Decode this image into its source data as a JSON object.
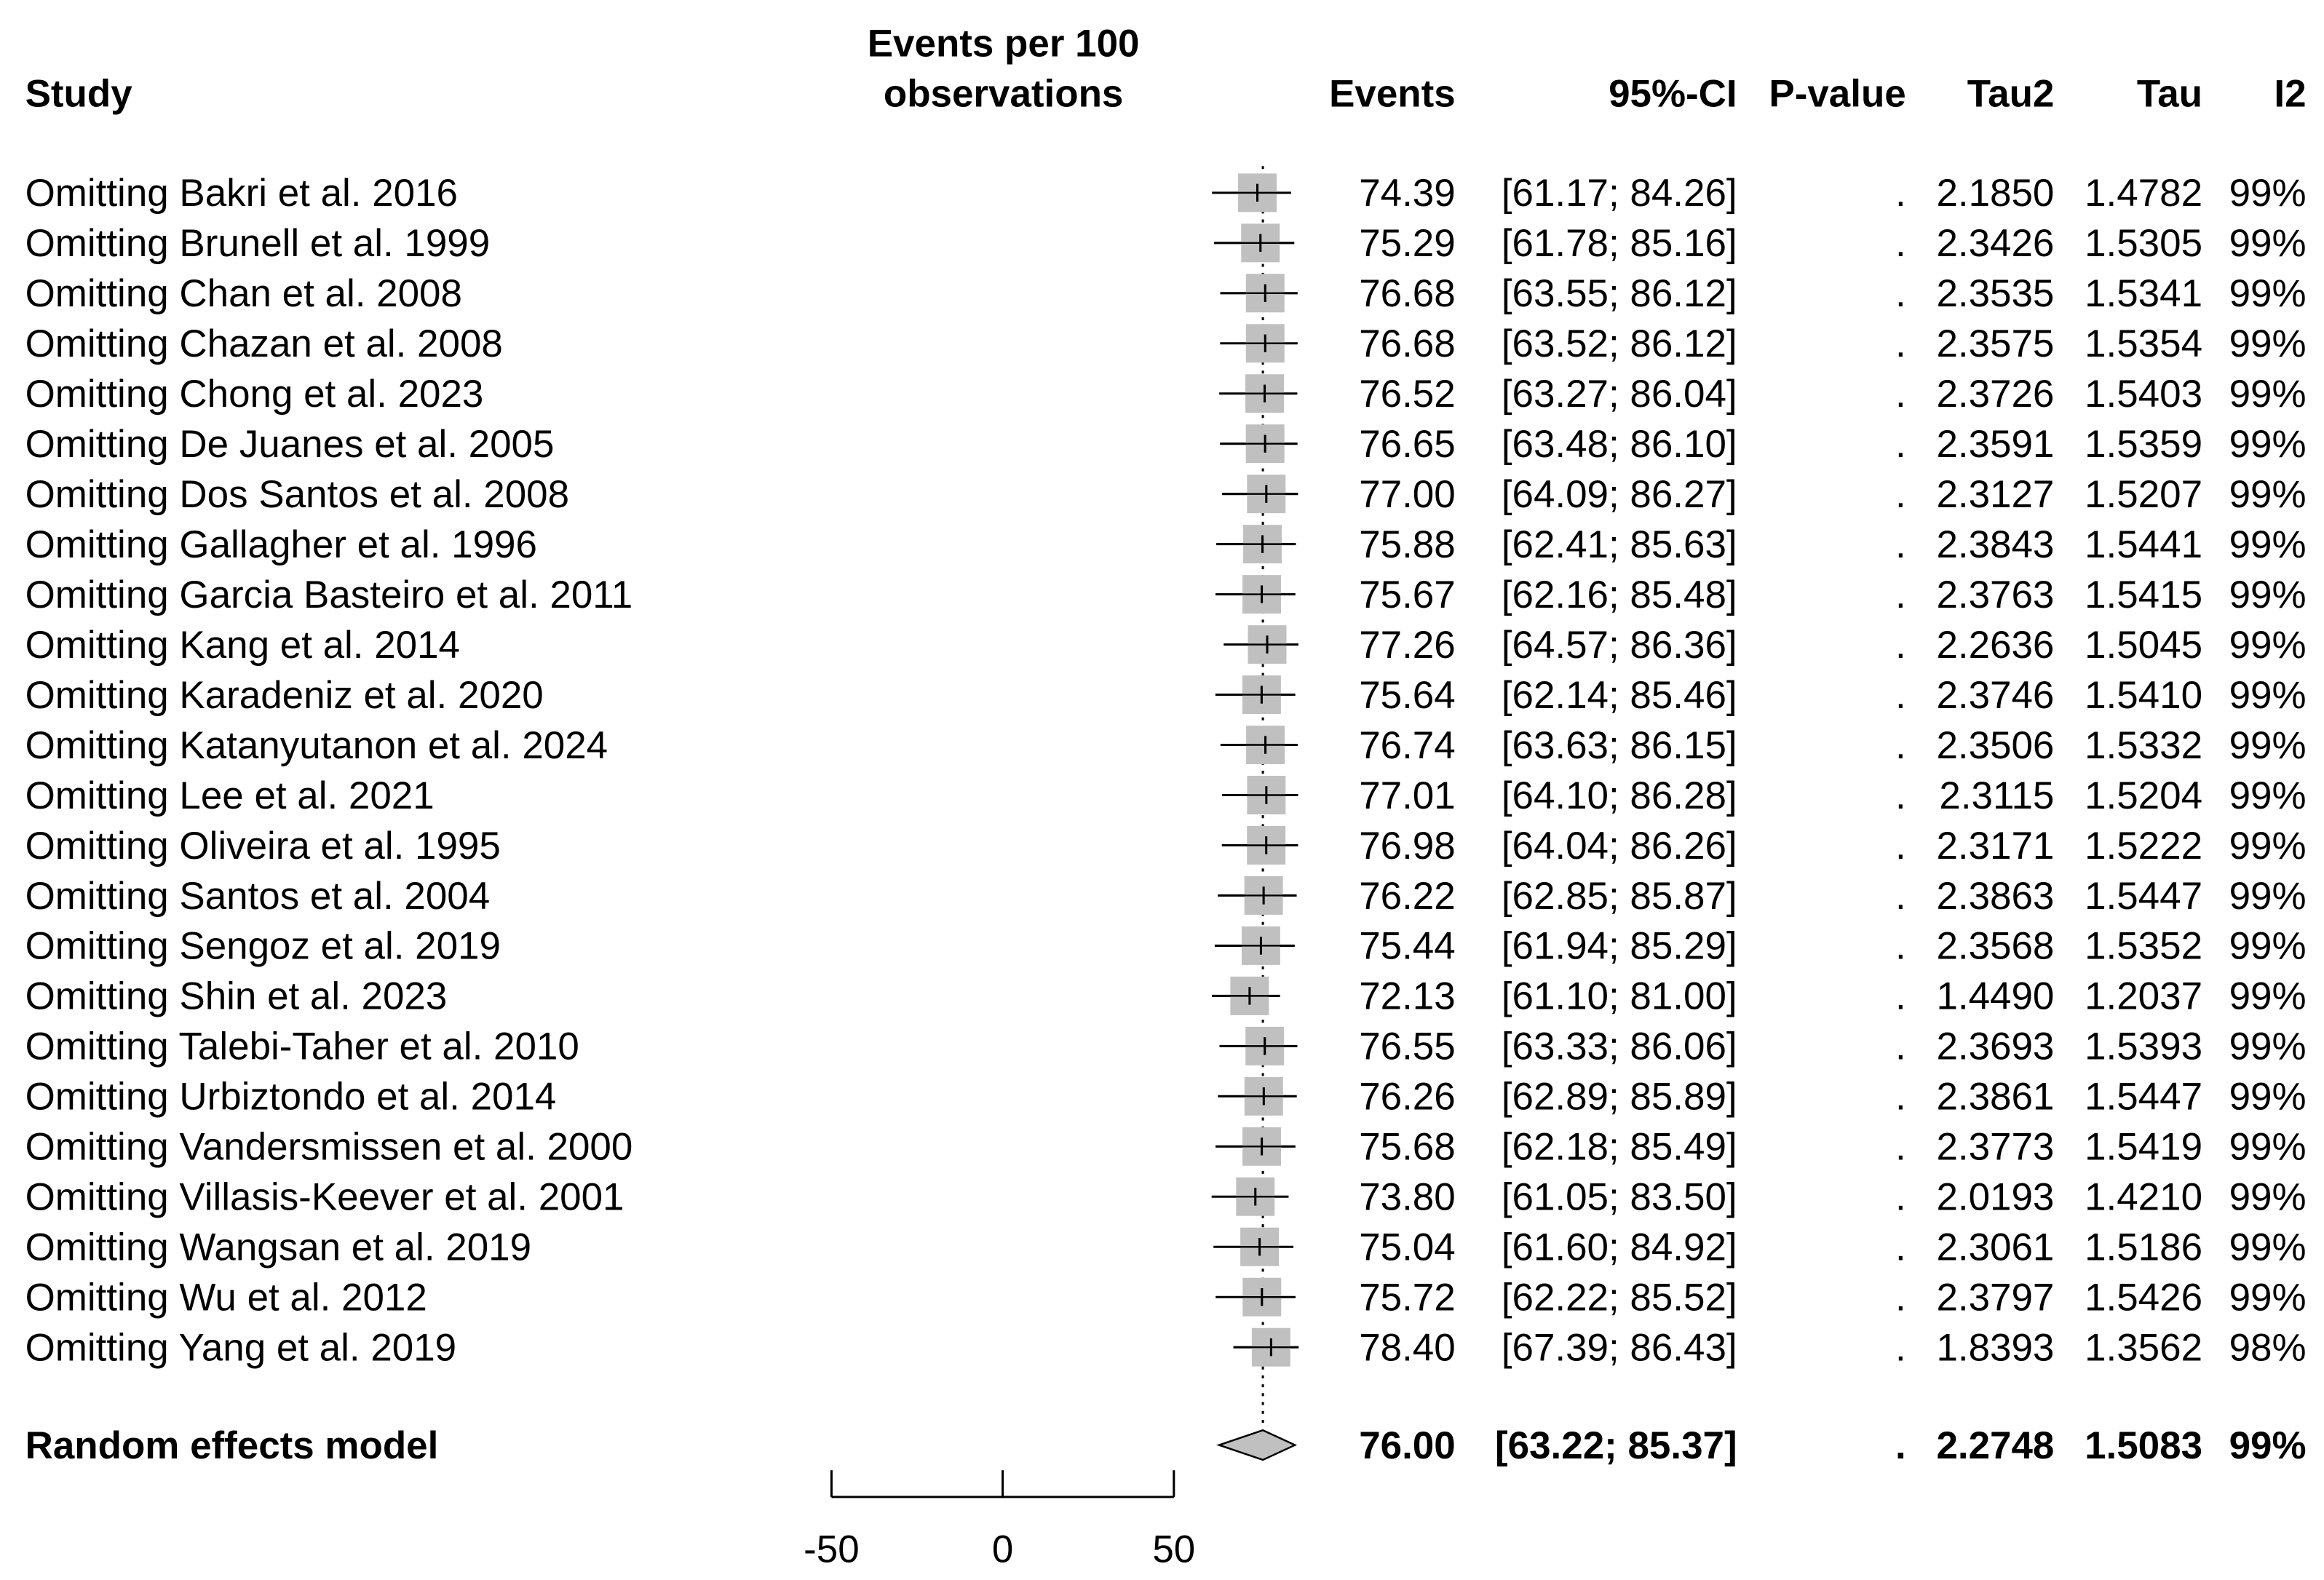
{
  "chart_data": {
    "type": "forest",
    "headers": {
      "study": "Study",
      "effect": [
        "Events per 100",
        "observations"
      ],
      "events": "Events",
      "ci": "95%-CI",
      "pvalue": "P-value",
      "tau2": "Tau2",
      "tau": "Tau",
      "i2": "I2"
    },
    "studies": [
      "Omitting Bakri et al. 2016",
      "Omitting Brunell et al. 1999",
      "Omitting Chan et al. 2008",
      "Omitting Chazan et al. 2008",
      "Omitting Chong et al. 2023",
      "Omitting De Juanes et al. 2005",
      "Omitting Dos Santos et al. 2008",
      "Omitting Gallagher et al. 1996",
      "Omitting Garcia Basteiro et al. 2011",
      "Omitting Kang et al. 2014",
      "Omitting Karadeniz et al. 2020",
      "Omitting Katanyutanon et al. 2024",
      "Omitting Lee et al. 2021",
      "Omitting Oliveira et al. 1995",
      "Omitting Santos et al. 2004",
      "Omitting Sengoz et al. 2019",
      "Omitting Shin et al. 2023",
      "Omitting Talebi-Taher et al. 2010",
      "Omitting Urbiztondo et al. 2014",
      "Omitting Vandersmissen et al. 2000",
      "Omitting Villasis-Keever et al. 2001",
      "Omitting Wangsan et al. 2019",
      "Omitting Wu et al. 2012",
      "Omitting Yang et al. 2019"
    ],
    "events": [
      74.39,
      75.29,
      76.68,
      76.68,
      76.52,
      76.65,
      77.0,
      75.88,
      75.67,
      77.26,
      75.64,
      76.74,
      77.01,
      76.98,
      76.22,
      75.44,
      72.13,
      76.55,
      76.26,
      75.68,
      73.8,
      75.04,
      75.72,
      78.4
    ],
    "events_labels": [
      "74.39",
      "75.29",
      "76.68",
      "76.68",
      "76.52",
      "76.65",
      "77.00",
      "75.88",
      "75.67",
      "77.26",
      "75.64",
      "76.74",
      "77.01",
      "76.98",
      "76.22",
      "75.44",
      "72.13",
      "76.55",
      "76.26",
      "75.68",
      "73.80",
      "75.04",
      "75.72",
      "78.40"
    ],
    "ci_lower": [
      61.17,
      61.78,
      63.55,
      63.52,
      63.27,
      63.48,
      64.09,
      62.41,
      62.16,
      64.57,
      62.14,
      63.63,
      64.1,
      64.04,
      62.85,
      61.94,
      61.1,
      63.33,
      62.89,
      62.18,
      61.05,
      61.6,
      62.22,
      67.39
    ],
    "ci_upper": [
      84.26,
      85.16,
      86.12,
      86.12,
      86.04,
      86.1,
      86.27,
      85.63,
      85.48,
      86.36,
      85.46,
      86.15,
      86.28,
      86.26,
      85.87,
      85.29,
      81.0,
      86.06,
      85.89,
      85.49,
      83.5,
      84.92,
      85.52,
      86.43
    ],
    "ci_labels": [
      "[61.17; 84.26]",
      "[61.78; 85.16]",
      "[63.55; 86.12]",
      "[63.52; 86.12]",
      "[63.27; 86.04]",
      "[63.48; 86.10]",
      "[64.09; 86.27]",
      "[62.41; 85.63]",
      "[62.16; 85.48]",
      "[64.57; 86.36]",
      "[62.14; 85.46]",
      "[63.63; 86.15]",
      "[64.10; 86.28]",
      "[64.04; 86.26]",
      "[62.85; 85.87]",
      "[61.94; 85.29]",
      "[61.10; 81.00]",
      "[63.33; 86.06]",
      "[62.89; 85.89]",
      "[62.18; 85.49]",
      "[61.05; 83.50]",
      "[61.60; 84.92]",
      "[62.22; 85.52]",
      "[67.39; 86.43]"
    ],
    "pvalues": [
      ".",
      ".",
      ".",
      ".",
      ".",
      ".",
      ".",
      ".",
      ".",
      ".",
      ".",
      ".",
      ".",
      ".",
      ".",
      ".",
      ".",
      ".",
      ".",
      ".",
      ".",
      ".",
      ".",
      "."
    ],
    "tau2": [
      2.185,
      2.3426,
      2.3535,
      2.3575,
      2.3726,
      2.3591,
      2.3127,
      2.3843,
      2.3763,
      2.2636,
      2.3746,
      2.3506,
      2.3115,
      2.3171,
      2.3863,
      2.3568,
      1.449,
      2.3693,
      2.3861,
      2.3773,
      2.0193,
      2.3061,
      2.3797,
      1.8393
    ],
    "tau2_labels": [
      "2.1850",
      "2.3426",
      "2.3535",
      "2.3575",
      "2.3726",
      "2.3591",
      "2.3127",
      "2.3843",
      "2.3763",
      "2.2636",
      "2.3746",
      "2.3506",
      "2.3115",
      "2.3171",
      "2.3863",
      "2.3568",
      "1.4490",
      "2.3693",
      "2.3861",
      "2.3773",
      "2.0193",
      "2.3061",
      "2.3797",
      "1.8393"
    ],
    "tau": [
      1.4782,
      1.5305,
      1.5341,
      1.5354,
      1.5403,
      1.5359,
      1.5207,
      1.5441,
      1.5415,
      1.5045,
      1.541,
      1.5332,
      1.5204,
      1.5222,
      1.5447,
      1.5352,
      1.2037,
      1.5393,
      1.5447,
      1.5419,
      1.421,
      1.5186,
      1.5426,
      1.3562
    ],
    "tau_labels": [
      "1.4782",
      "1.5305",
      "1.5341",
      "1.5354",
      "1.5403",
      "1.5359",
      "1.5207",
      "1.5441",
      "1.5415",
      "1.5045",
      "1.5410",
      "1.5332",
      "1.5204",
      "1.5222",
      "1.5447",
      "1.5352",
      "1.2037",
      "1.5393",
      "1.5447",
      "1.5419",
      "1.4210",
      "1.5186",
      "1.5426",
      "1.3562"
    ],
    "i2": [
      99,
      99,
      99,
      99,
      99,
      99,
      99,
      99,
      99,
      99,
      99,
      99,
      99,
      99,
      99,
      99,
      99,
      99,
      99,
      99,
      99,
      99,
      99,
      98
    ],
    "i2_labels": [
      "99%",
      "99%",
      "99%",
      "99%",
      "99%",
      "99%",
      "99%",
      "99%",
      "99%",
      "99%",
      "99%",
      "99%",
      "99%",
      "99%",
      "99%",
      "99%",
      "99%",
      "99%",
      "99%",
      "99%",
      "99%",
      "99%",
      "99%",
      "98%"
    ],
    "summary": {
      "name": "Random effects model",
      "events": 76.0,
      "events_label": "76.00",
      "ci_lower": 63.22,
      "ci_upper": 85.37,
      "ci_label": "[63.22; 85.37]",
      "pvalue": ".",
      "tau2": 2.2748,
      "tau2_label": "2.2748",
      "tau": 1.5083,
      "tau_label": "1.5083",
      "i2": 99,
      "i2_label": "99%"
    },
    "xlim": [
      -50,
      50
    ],
    "xticks": [
      -50,
      0,
      50
    ],
    "box_color": "#c0c0c0"
  }
}
